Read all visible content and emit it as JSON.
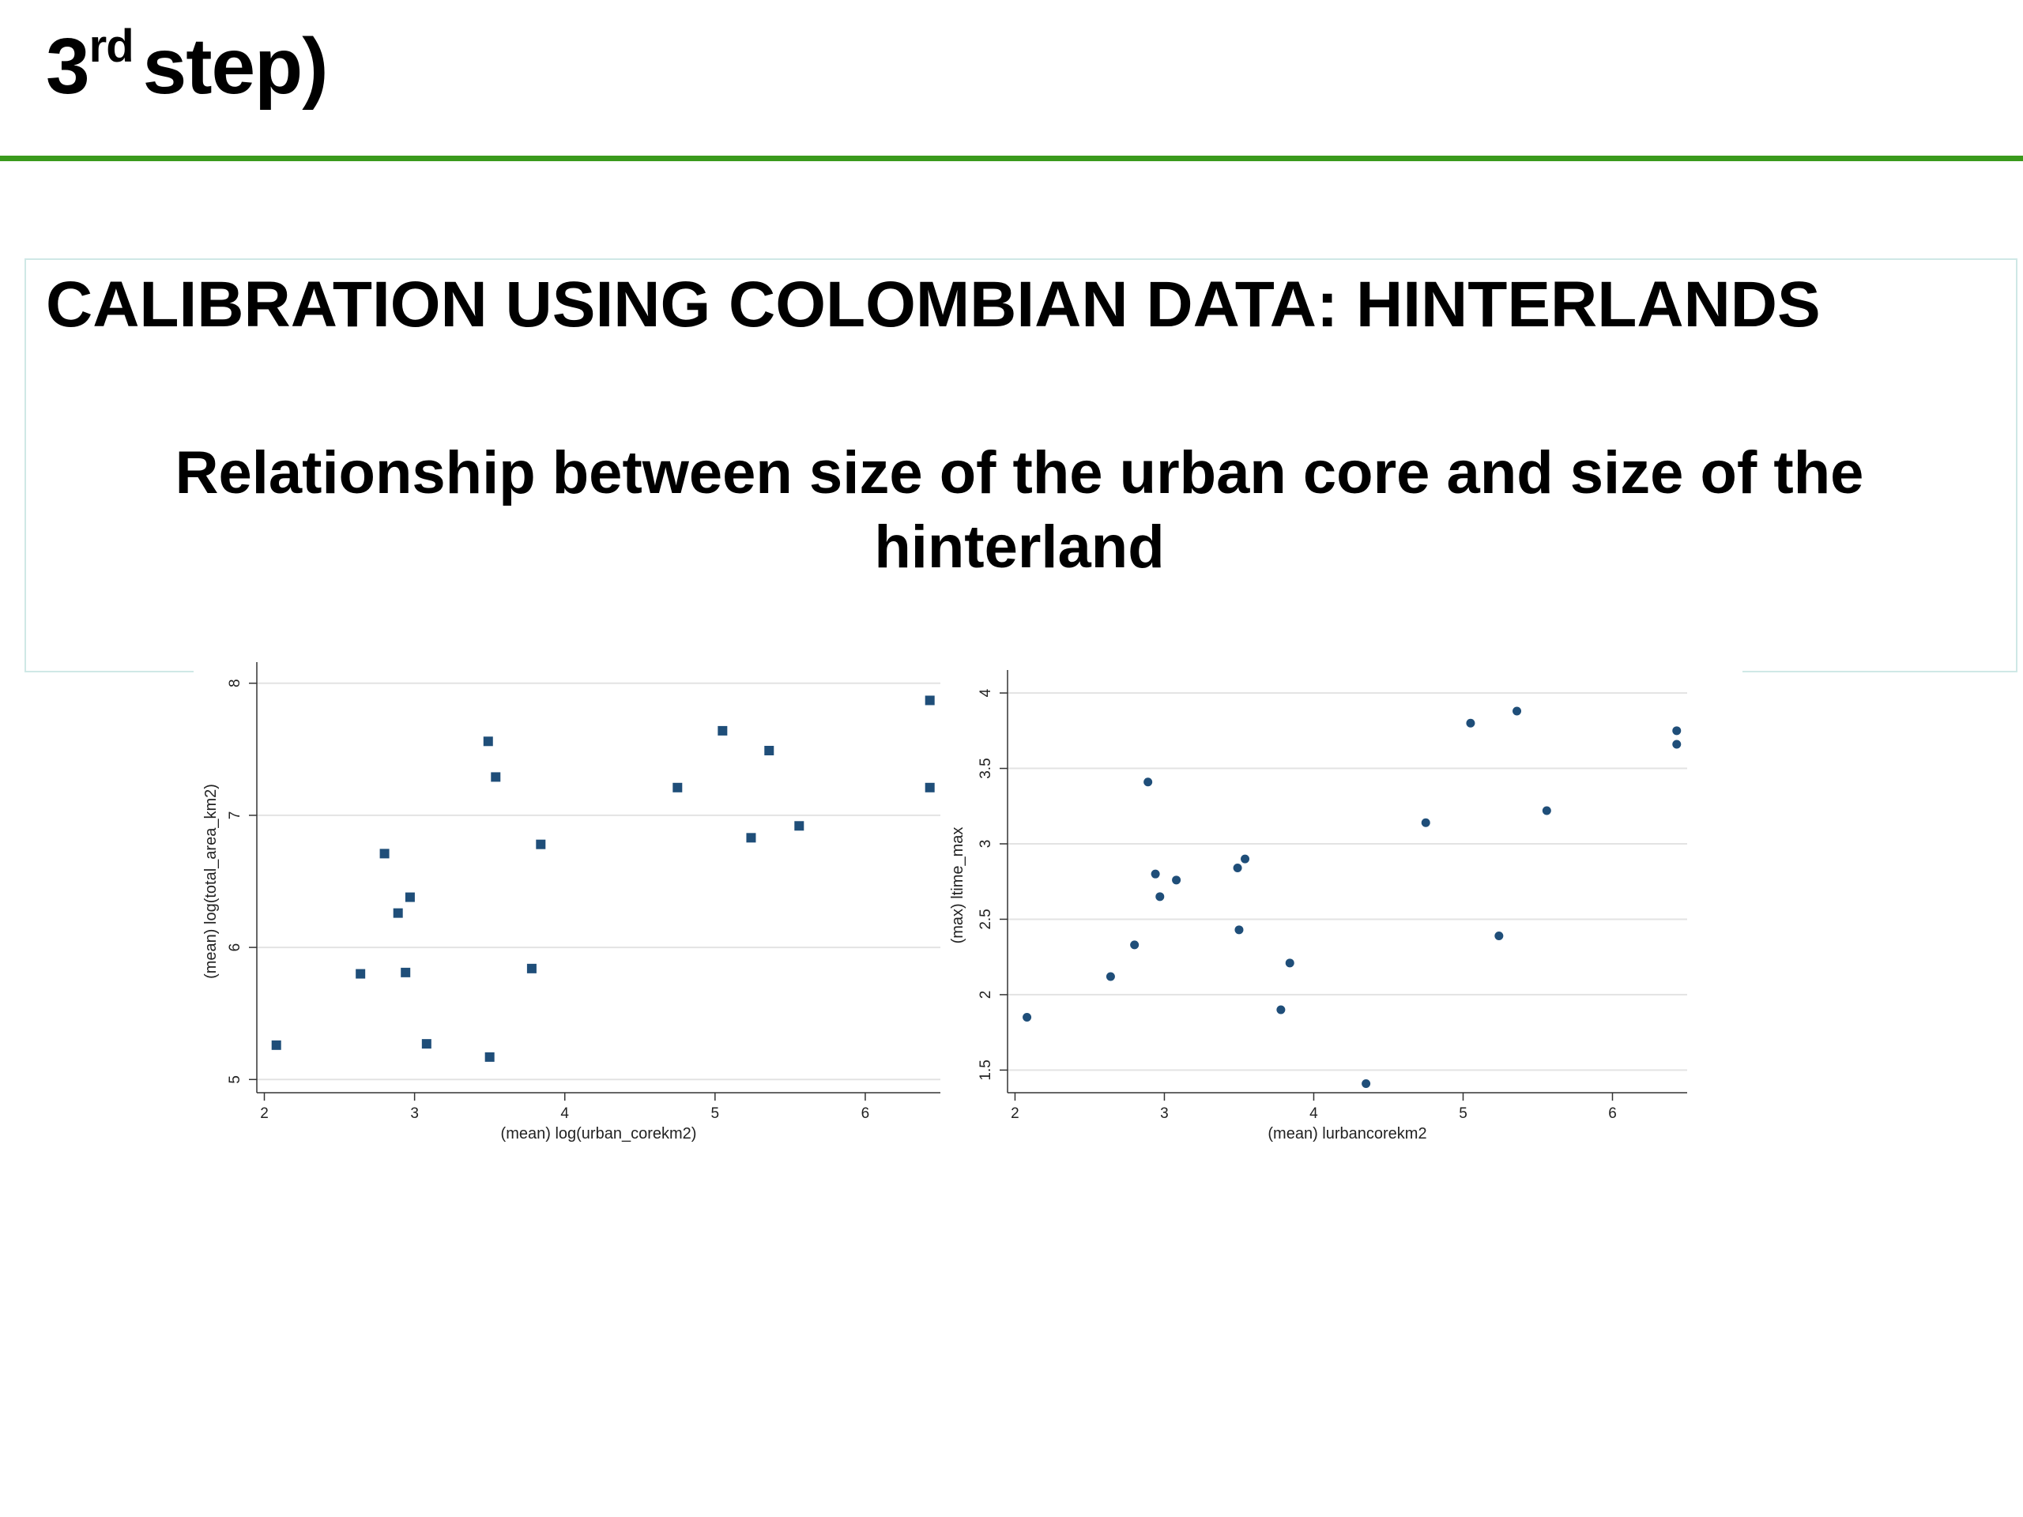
{
  "header": {
    "title_main": "3",
    "title_sup": "rd",
    "title_rest": "step)"
  },
  "heading": "CALIBRATION USING COLOMBIAN DATA: HINTERLANDS",
  "subheading": "Relationship between size of the urban core and size of the hinterland",
  "colors": {
    "rule": "#3a9a1c",
    "marker": "#1f4e79",
    "grid": "#e3e3e3",
    "box_border": "#cfe8e6"
  },
  "chart_data": [
    {
      "type": "scatter",
      "marker": "square",
      "xlabel": "(mean) log(urban_corekm2)",
      "ylabel": "(mean) log(total_area_km2)",
      "xlim": [
        1.95,
        6.5
      ],
      "ylim": [
        4.9,
        8.1
      ],
      "xticks": [
        "2",
        "3",
        "4",
        "5",
        "6"
      ],
      "yticks": [
        "5",
        "6",
        "7",
        "8"
      ],
      "points": [
        [
          2.08,
          5.26
        ],
        [
          2.64,
          5.8
        ],
        [
          2.8,
          6.71
        ],
        [
          2.89,
          6.26
        ],
        [
          2.94,
          5.81
        ],
        [
          2.97,
          6.38
        ],
        [
          3.08,
          5.27
        ],
        [
          3.49,
          7.56
        ],
        [
          3.5,
          5.17
        ],
        [
          3.54,
          7.29
        ],
        [
          3.78,
          5.84
        ],
        [
          3.84,
          6.78
        ],
        [
          4.75,
          7.21
        ],
        [
          5.05,
          7.64
        ],
        [
          5.24,
          6.83
        ],
        [
          5.36,
          7.49
        ],
        [
          5.56,
          6.92
        ],
        [
          6.43,
          7.87
        ],
        [
          6.43,
          7.21
        ]
      ]
    },
    {
      "type": "scatter",
      "marker": "circle",
      "xlabel": "(mean) lurbancorekm2",
      "ylabel": "(max) ltime_max",
      "xlim": [
        1.95,
        6.5
      ],
      "ylim": [
        1.35,
        4.1
      ],
      "xticks": [
        "2",
        "3",
        "4",
        "5",
        "6"
      ],
      "yticks": [
        "1.5",
        "2",
        "2.5",
        "3",
        "3.5",
        "4"
      ],
      "points": [
        [
          2.08,
          1.85
        ],
        [
          2.64,
          2.12
        ],
        [
          2.8,
          2.33
        ],
        [
          2.89,
          3.41
        ],
        [
          2.94,
          2.8
        ],
        [
          2.97,
          2.65
        ],
        [
          3.08,
          2.76
        ],
        [
          3.49,
          2.84
        ],
        [
          3.5,
          2.43
        ],
        [
          3.54,
          2.9
        ],
        [
          3.78,
          1.9
        ],
        [
          3.84,
          2.21
        ],
        [
          4.35,
          1.41
        ],
        [
          4.75,
          3.14
        ],
        [
          5.05,
          3.8
        ],
        [
          5.24,
          2.39
        ],
        [
          5.36,
          3.88
        ],
        [
          5.56,
          3.22
        ],
        [
          6.43,
          3.75
        ],
        [
          6.43,
          3.66
        ]
      ]
    }
  ]
}
